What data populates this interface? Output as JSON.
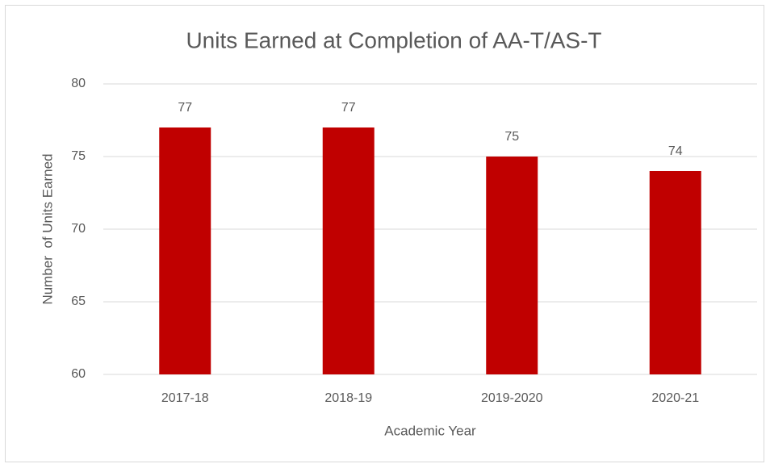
{
  "chart_data": {
    "type": "bar",
    "title": "Units Earned at Completion of AA-T/AS-T",
    "x_label": "Academic Year",
    "y_label": "Number  of Units Earned",
    "categories": [
      "2017-18",
      "2018-19",
      "2019-2020",
      "2020-21"
    ],
    "values": [
      77,
      77,
      75,
      74
    ],
    "color": "#c00000",
    "ylim": [
      60,
      80
    ],
    "yticks": [
      60,
      65,
      70,
      75,
      80
    ],
    "grid": true
  }
}
